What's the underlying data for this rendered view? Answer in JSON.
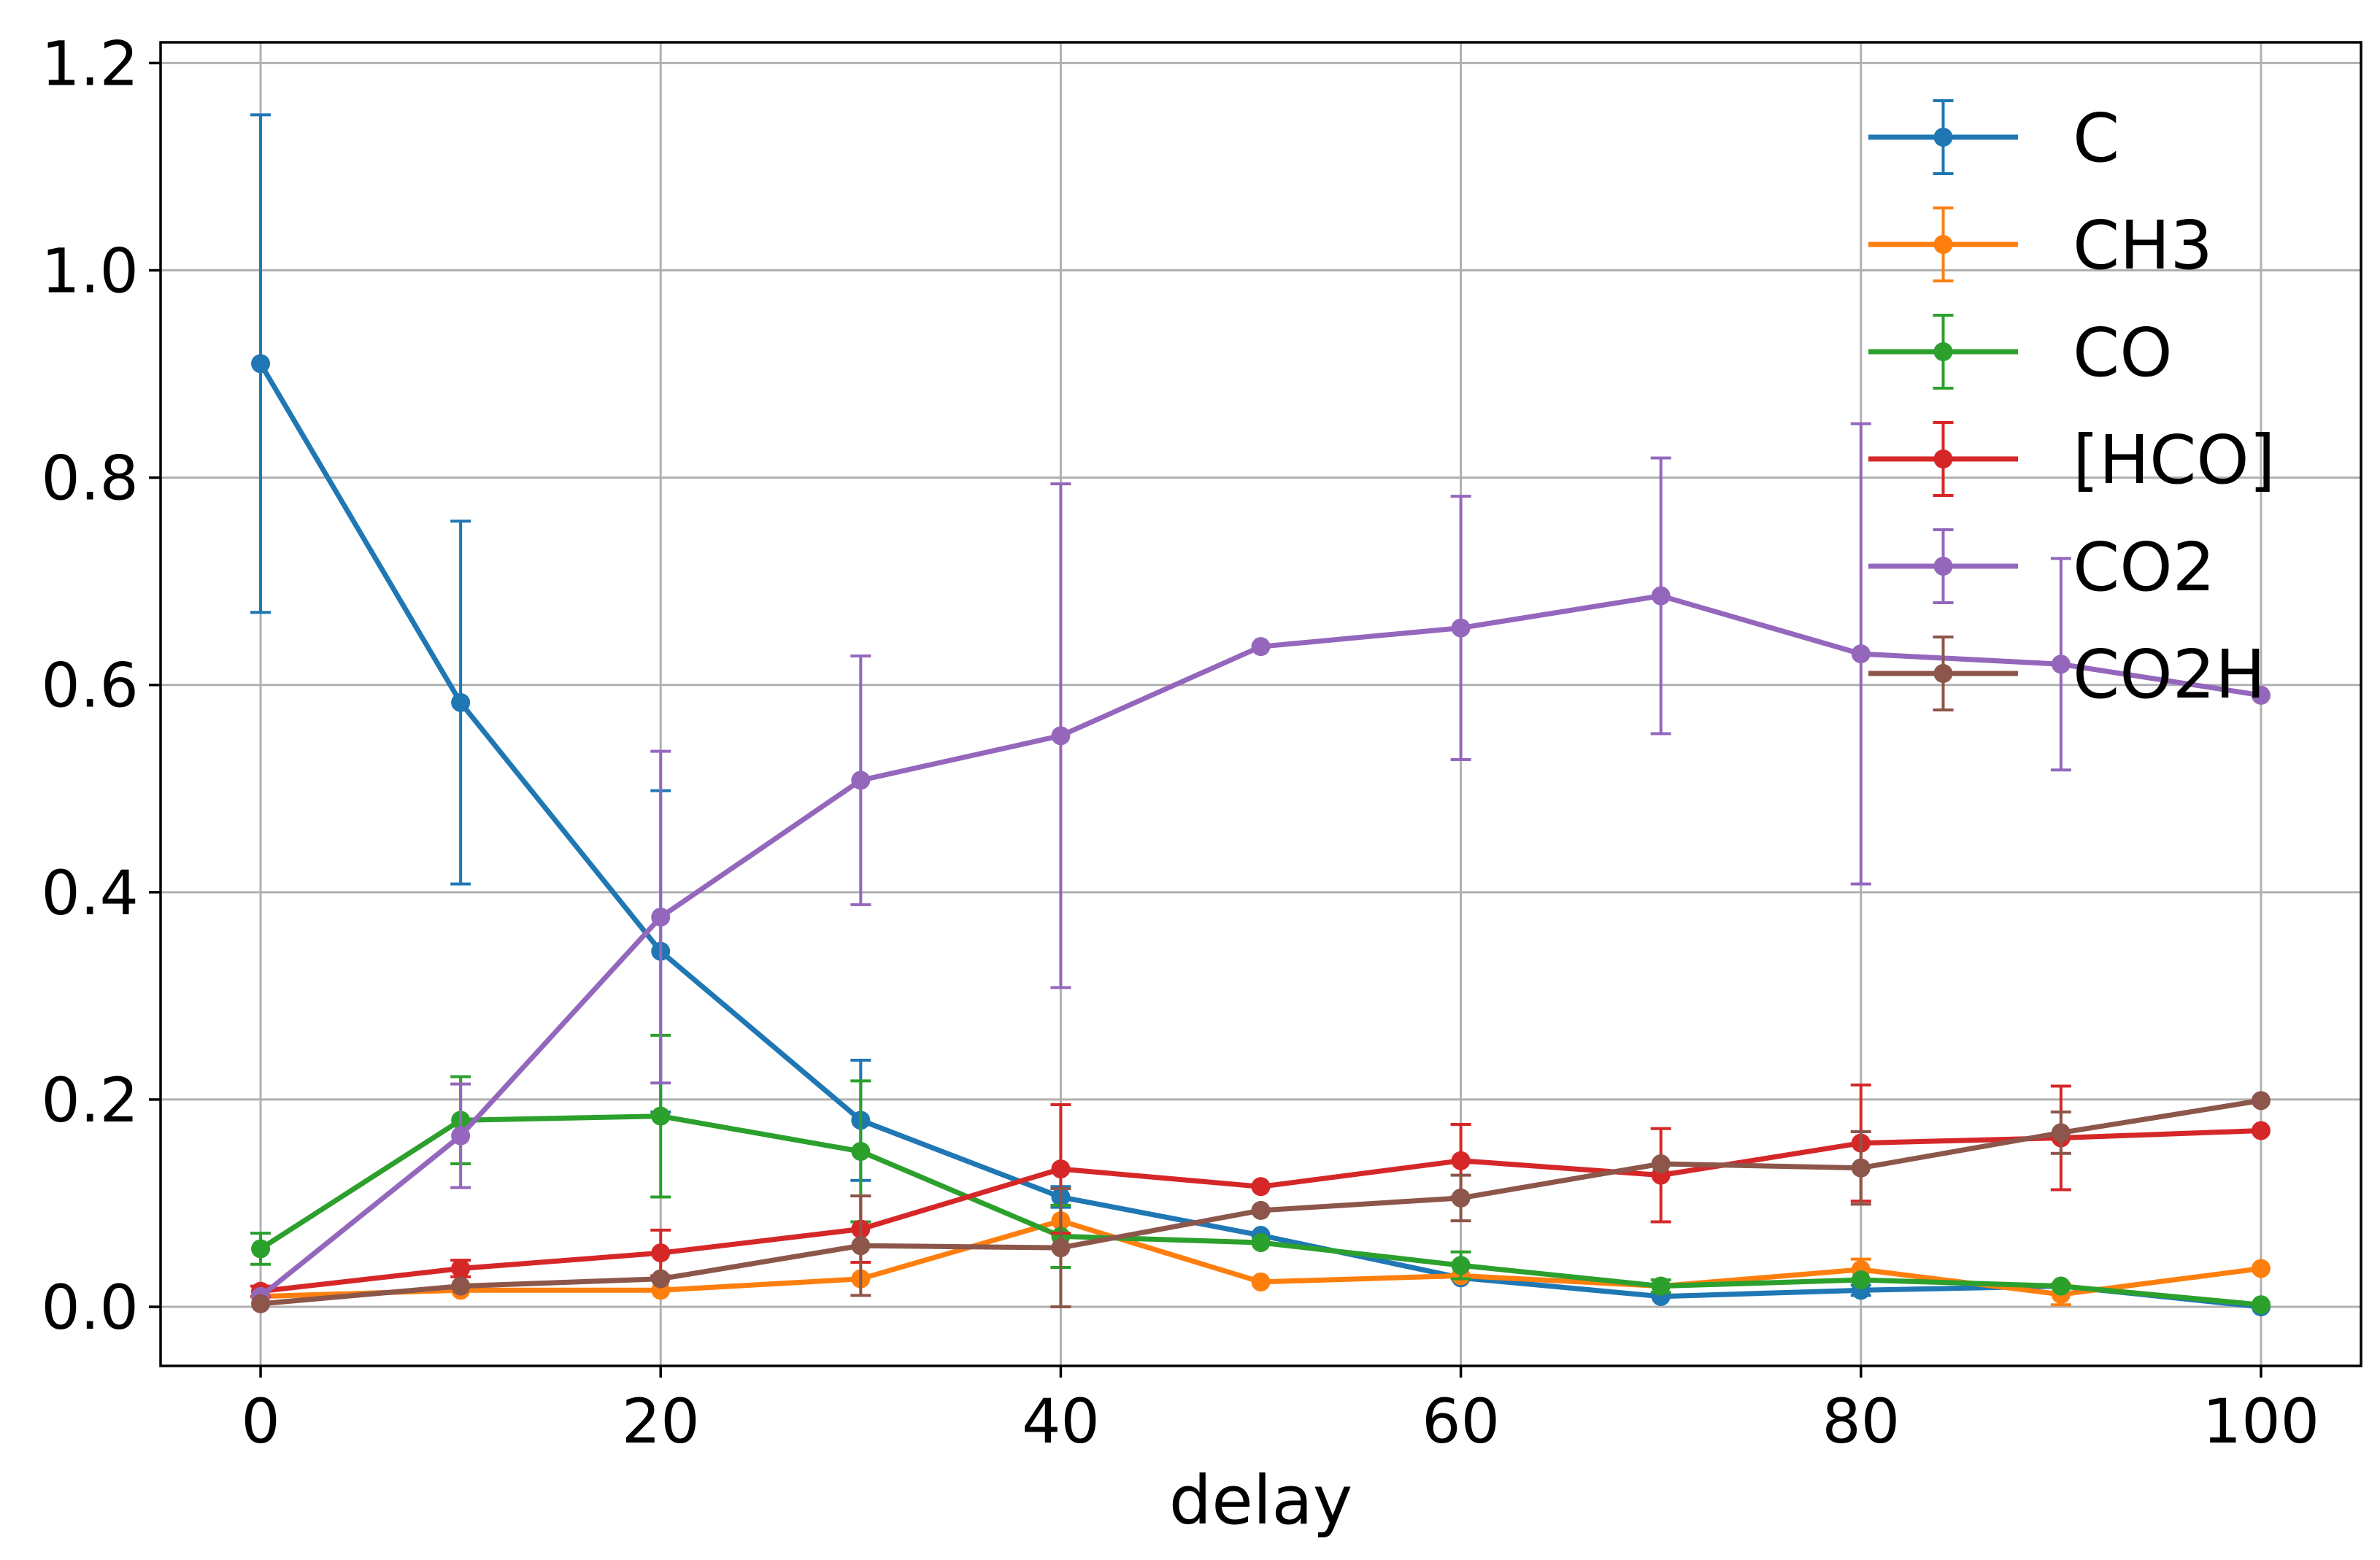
{
  "chart_data": {
    "type": "line",
    "xlabel": "delay",
    "ylabel": "",
    "title": "",
    "xlim": [
      -5,
      105
    ],
    "ylim": [
      -0.057,
      1.22
    ],
    "xticks": [
      0,
      20,
      40,
      60,
      80,
      100
    ],
    "yticks": [
      0.0,
      0.2,
      0.4,
      0.6,
      0.8,
      1.0,
      1.2
    ],
    "xtick_labels": [
      "0",
      "20",
      "40",
      "60",
      "80",
      "100"
    ],
    "ytick_labels": [
      "0.0",
      "0.2",
      "0.4",
      "0.6",
      "0.8",
      "1.0",
      "1.2"
    ],
    "grid": true,
    "legend_position": "top-right",
    "x": [
      0,
      10,
      20,
      30,
      40,
      50,
      60,
      70,
      80,
      90,
      100
    ],
    "series": [
      {
        "name": "C",
        "color": "#1f77b4",
        "values": [
          0.91,
          0.583,
          0.343,
          0.18,
          0.106,
          0.069,
          0.028,
          0.01,
          0.016,
          0.02,
          0.0
        ],
        "errors": [
          0.24,
          0.175,
          0.155,
          0.058,
          0.01,
          0.0,
          0.0,
          0.0,
          0.005,
          0.0,
          0.0
        ]
      },
      {
        "name": "CH3",
        "color": "#ff7f0e",
        "values": [
          0.01,
          0.016,
          0.016,
          0.027,
          0.083,
          0.024,
          0.03,
          0.02,
          0.036,
          0.012,
          0.037
        ],
        "errors": [
          0.0,
          0.0,
          0.0,
          0.0,
          0.0,
          0.0,
          0.0,
          0.0,
          0.01,
          0.01,
          0.0
        ]
      },
      {
        "name": "CO",
        "color": "#2ca02c",
        "values": [
          0.056,
          0.18,
          0.184,
          0.15,
          0.068,
          0.062,
          0.04,
          0.02,
          0.026,
          0.02,
          0.002
        ],
        "errors": [
          0.015,
          0.042,
          0.078,
          0.068,
          0.03,
          0.0,
          0.013,
          0.006,
          0.0,
          0.0,
          0.0
        ]
      },
      {
        "name": "[HCO]",
        "color": "#d62728",
        "values": [
          0.015,
          0.037,
          0.052,
          0.075,
          0.133,
          0.116,
          0.141,
          0.127,
          0.158,
          0.163,
          0.17
        ],
        "errors": [
          0.005,
          0.008,
          0.022,
          0.032,
          0.062,
          0.0,
          0.035,
          0.045,
          0.056,
          0.05,
          0.0
        ]
      },
      {
        "name": "CO2",
        "color": "#9467bd",
        "values": [
          0.01,
          0.165,
          0.376,
          0.508,
          0.551,
          0.637,
          0.655,
          0.686,
          0.63,
          0.62,
          0.59
        ],
        "errors": [
          0.0,
          0.05,
          0.16,
          0.12,
          0.243,
          0.0,
          0.127,
          0.133,
          0.222,
          0.102,
          0.0
        ]
      },
      {
        "name": "CO2H",
        "color": "#8c564b",
        "values": [
          0.003,
          0.02,
          0.027,
          0.059,
          0.057,
          0.093,
          0.105,
          0.138,
          0.134,
          0.168,
          0.199
        ],
        "errors": [
          0.0,
          0.0,
          0.0,
          0.048,
          0.057,
          0.0,
          0.022,
          0.0,
          0.035,
          0.02,
          0.0
        ]
      }
    ]
  }
}
